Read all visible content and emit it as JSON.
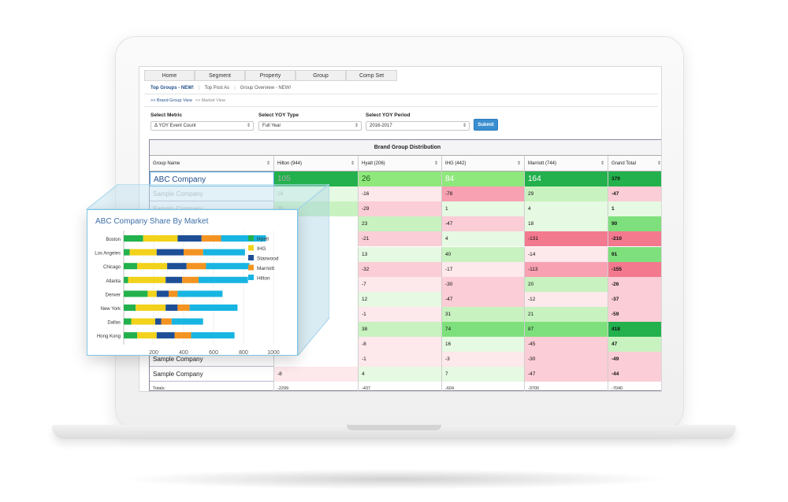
{
  "nav": {
    "tabs": [
      "Home",
      "Segment",
      "Property",
      "Group",
      "Comp Set"
    ],
    "subtabs": [
      {
        "label": "Top Groups - NEW!",
        "active": true
      },
      {
        "label": "Top Post As",
        "active": false
      },
      {
        "label": "Group Overview - NEW!",
        "active": false
      }
    ],
    "breadcrumb": [
      {
        "label": ">> Brand Group View",
        "active": true
      },
      {
        "label": ">> Market View",
        "active": false
      }
    ]
  },
  "filters": {
    "metric": {
      "label": "Select Metric",
      "value": "Δ YOY Event Count"
    },
    "yoy_type": {
      "label": "Select YOY Type",
      "value": "Full Year"
    },
    "yoy_period": {
      "label": "Select YOY Period",
      "value": "2016-2017"
    },
    "submit_label": "Submit"
  },
  "table": {
    "title": "Brand Group Distribution",
    "columns": [
      "Group Name",
      "Hilton (944)",
      "Hyatt (206)",
      "IHG (442)",
      "Marriott (744)",
      "Grand Total"
    ],
    "rows": [
      {
        "name": "ABC Company",
        "values": [
          "105",
          "26",
          "84",
          "164",
          "379"
        ]
      },
      {
        "name": "Sample Company",
        "values": [
          "18",
          "-16",
          "-78",
          "29",
          "-47"
        ]
      },
      {
        "name": "Sample Company",
        "values": [
          "25",
          "-29",
          "1",
          "4",
          "1"
        ]
      },
      {
        "name": "",
        "values": [
          "",
          "23",
          "-47",
          "18",
          "90"
        ]
      },
      {
        "name": "",
        "values": [
          "",
          "-21",
          "4",
          "-131",
          "-210"
        ]
      },
      {
        "name": "",
        "values": [
          "",
          "13",
          "40",
          "-14",
          "91"
        ]
      },
      {
        "name": "",
        "values": [
          "",
          "-32",
          "-17",
          "-113",
          "-155"
        ]
      },
      {
        "name": "",
        "values": [
          "",
          "-7",
          "-30",
          "20",
          "-26"
        ]
      },
      {
        "name": "",
        "values": [
          "",
          "12",
          "-47",
          "-12",
          "-37"
        ]
      },
      {
        "name": "",
        "values": [
          "",
          "-1",
          "31",
          "21",
          "-59"
        ]
      },
      {
        "name": "",
        "values": [
          "",
          "38",
          "74",
          "87",
          "418"
        ]
      },
      {
        "name": "",
        "values": [
          "",
          "-8",
          "16",
          "-45",
          "47"
        ]
      },
      {
        "name": "Sample Company",
        "values": [
          "",
          "-1",
          "-3",
          "-30",
          "-49"
        ]
      },
      {
        "name": "Sample Company",
        "values": [
          "-8",
          "4",
          "7",
          "-47",
          "-44"
        ]
      }
    ],
    "totals": {
      "label": "Totals:",
      "values": [
        "-2299",
        "-437",
        "-604",
        "-3700",
        "-7040"
      ]
    }
  },
  "overlay": {
    "title": "ABC Company Share By Market"
  },
  "chart_data": {
    "type": "bar",
    "orientation": "horizontal",
    "stacked": true,
    "title": "ABC Company Share By Market",
    "categories": [
      "Boston",
      "Los Angeles",
      "Chicago",
      "Atlanta",
      "Denver",
      "New York",
      "Dallas",
      "Hong Kong"
    ],
    "series": [
      {
        "name": "Hyatt",
        "color": "#22b14c",
        "values": [
          130,
          40,
          90,
          30,
          160,
          80,
          50,
          90
        ]
      },
      {
        "name": "IHG",
        "color": "#f2d21b",
        "values": [
          230,
          180,
          200,
          250,
          60,
          200,
          160,
          130
        ]
      },
      {
        "name": "Starwood",
        "color": "#1e4f96",
        "values": [
          160,
          180,
          130,
          110,
          80,
          80,
          40,
          120
        ]
      },
      {
        "name": "Marriott",
        "color": "#f39322",
        "values": [
          130,
          130,
          130,
          110,
          60,
          80,
          70,
          110
        ]
      },
      {
        "name": "Hilton",
        "color": "#18b5e2",
        "values": [
          300,
          280,
          290,
          330,
          300,
          320,
          210,
          290
        ]
      }
    ],
    "xticks": [
      200,
      400,
      600,
      800,
      1000
    ],
    "xlim": [
      0,
      1000
    ],
    "legend": "right"
  }
}
